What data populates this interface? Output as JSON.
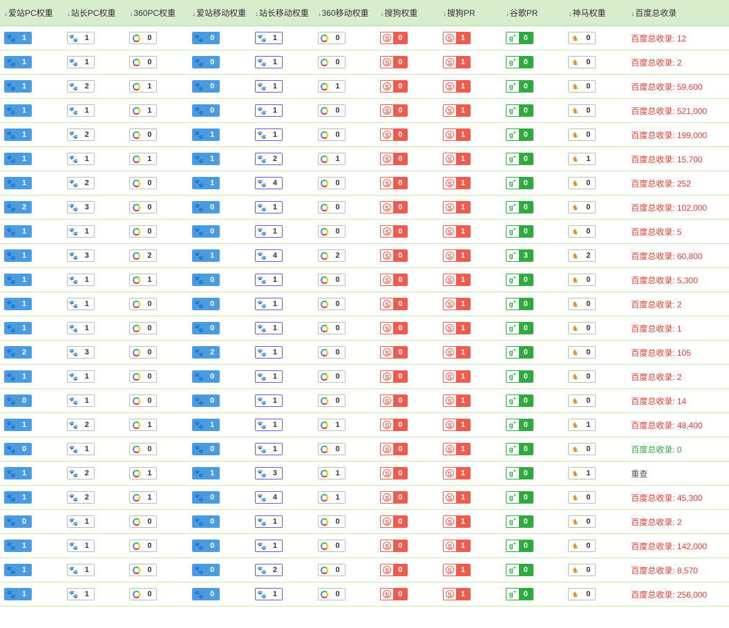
{
  "columns": [
    "爱站PC权重",
    "站长PC权重",
    "360PC权重",
    "爱站移动权重",
    "站长移动权重",
    "360移动权重",
    "搜狗权重",
    "搜狗PR",
    "谷歌PR",
    "神马权重",
    "百度总收录"
  ],
  "tail_prefix": "百度总收录: ",
  "rows": [
    {
      "v": [
        1,
        1,
        0,
        0,
        1,
        0,
        0,
        1,
        0,
        0
      ],
      "tail": "12"
    },
    {
      "v": [
        1,
        1,
        0,
        0,
        1,
        0,
        0,
        1,
        0,
        0
      ],
      "tail": "2"
    },
    {
      "v": [
        1,
        2,
        1,
        0,
        1,
        1,
        0,
        1,
        0,
        0
      ],
      "tail": "59,600"
    },
    {
      "v": [
        1,
        1,
        1,
        0,
        1,
        0,
        0,
        1,
        0,
        0
      ],
      "tail": "521,000"
    },
    {
      "v": [
        1,
        2,
        0,
        1,
        1,
        0,
        0,
        1,
        0,
        0
      ],
      "tail": "199,000"
    },
    {
      "v": [
        1,
        1,
        1,
        1,
        2,
        1,
        0,
        1,
        0,
        1
      ],
      "tail": "15,700"
    },
    {
      "v": [
        1,
        2,
        0,
        1,
        4,
        0,
        0,
        1,
        0,
        0
      ],
      "tail": "252"
    },
    {
      "v": [
        2,
        3,
        0,
        0,
        1,
        0,
        0,
        1,
        0,
        0
      ],
      "tail": "102,000"
    },
    {
      "v": [
        1,
        1,
        0,
        0,
        1,
        0,
        0,
        1,
        0,
        0
      ],
      "tail": "5"
    },
    {
      "v": [
        1,
        3,
        2,
        1,
        4,
        2,
        0,
        1,
        3,
        2
      ],
      "tail": "60,800"
    },
    {
      "v": [
        1,
        1,
        1,
        0,
        1,
        0,
        0,
        1,
        0,
        0
      ],
      "tail": "5,300"
    },
    {
      "v": [
        1,
        1,
        0,
        0,
        1,
        0,
        0,
        1,
        0,
        0
      ],
      "tail": "2"
    },
    {
      "v": [
        1,
        1,
        0,
        0,
        1,
        0,
        0,
        1,
        0,
        0
      ],
      "tail": "1"
    },
    {
      "v": [
        2,
        3,
        0,
        2,
        1,
        0,
        0,
        1,
        0,
        0
      ],
      "tail": "105"
    },
    {
      "v": [
        1,
        1,
        0,
        0,
        1,
        0,
        0,
        1,
        0,
        0
      ],
      "tail": "2"
    },
    {
      "v": [
        0,
        1,
        0,
        0,
        1,
        0,
        0,
        1,
        0,
        0
      ],
      "tail": "14"
    },
    {
      "v": [
        1,
        2,
        1,
        1,
        1,
        1,
        0,
        1,
        0,
        1
      ],
      "tail": "48,400"
    },
    {
      "v": [
        0,
        1,
        0,
        0,
        1,
        0,
        0,
        1,
        0,
        0
      ],
      "tail": "0",
      "tail_style": "green"
    },
    {
      "v": [
        1,
        2,
        1,
        1,
        3,
        1,
        0,
        1,
        0,
        1
      ],
      "tail": "重查",
      "tail_raw": true,
      "tail_style": "dark"
    },
    {
      "v": [
        1,
        2,
        1,
        0,
        4,
        1,
        0,
        1,
        0,
        0
      ],
      "tail": "45,300"
    },
    {
      "v": [
        0,
        1,
        0,
        0,
        1,
        0,
        0,
        1,
        0,
        0
      ],
      "tail": "2"
    },
    {
      "v": [
        1,
        1,
        0,
        0,
        1,
        0,
        0,
        1,
        0,
        0
      ],
      "tail": "142,000"
    },
    {
      "v": [
        1,
        1,
        0,
        0,
        2,
        0,
        0,
        1,
        0,
        0
      ],
      "tail": "8,570"
    },
    {
      "v": [
        1,
        1,
        0,
        0,
        1,
        0,
        0,
        1,
        0,
        0
      ],
      "tail": "256,000"
    }
  ],
  "col_styles": [
    {
      "cls": "b-blue",
      "icon": "paw-white"
    },
    {
      "cls": "b-white",
      "icon": "paw-gray"
    },
    {
      "cls": "b-360",
      "icon": "ring"
    },
    {
      "cls": "b-blue",
      "icon": "paw-white"
    },
    {
      "cls": "b-purple",
      "icon": "paw-purple"
    },
    {
      "cls": "b-360",
      "icon": "ring"
    },
    {
      "cls": "b-red",
      "icon": "sogou"
    },
    {
      "cls": "b-red",
      "icon": "sogou"
    },
    {
      "cls": "b-green",
      "icon": "gplus"
    },
    {
      "cls": "b-sm",
      "icon": "shenma"
    }
  ]
}
